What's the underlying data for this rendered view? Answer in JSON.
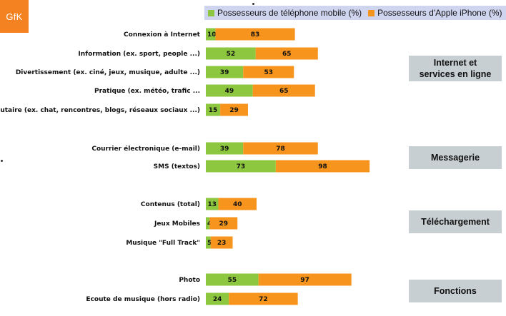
{
  "logo": {
    "text": "GfK",
    "color": "#f58220"
  },
  "colors": {
    "mobile": "#8dc63f",
    "iphone": "#f7941d"
  },
  "legend": {
    "mobile": "Possesseurs de téléphone mobile (%)",
    "iphone": "Possesseurs d'Apple iPhone (%)"
  },
  "groups": [
    {
      "label": "Internet et\nservices en ligne"
    },
    {
      "label": "Messagerie"
    },
    {
      "label": "Téléchargement"
    },
    {
      "label": "Fonctions"
    }
  ],
  "chart_data": {
    "type": "bar",
    "orientation": "horizontal",
    "stacked": true,
    "categories": [
      "Connexion à Internet",
      "Information (ex. sport, people ...)",
      "Divertissement (ex. ciné, jeux, musique, adulte ...)",
      "Pratique (ex. météo, trafic ...",
      "Communautaire (ex. chat, rencontres, blogs, réseaux sociaux ...)",
      "Courrier électronique (e-mail)",
      "SMS (textos)",
      "Contenus (total)",
      "Jeux Mobiles",
      "Musique \"Full Track\"",
      "Photo",
      "Ecoute de musique (hors radio)"
    ],
    "series": [
      {
        "name": "Possesseurs de téléphone mobile (%)",
        "values": [
          10,
          52,
          39,
          49,
          15,
          39,
          73,
          13,
          4,
          5,
          55,
          24
        ]
      },
      {
        "name": "Possesseurs d'Apple iPhone (%)",
        "values": [
          83,
          65,
          53,
          65,
          29,
          78,
          98,
          40,
          29,
          23,
          97,
          72
        ]
      }
    ]
  }
}
